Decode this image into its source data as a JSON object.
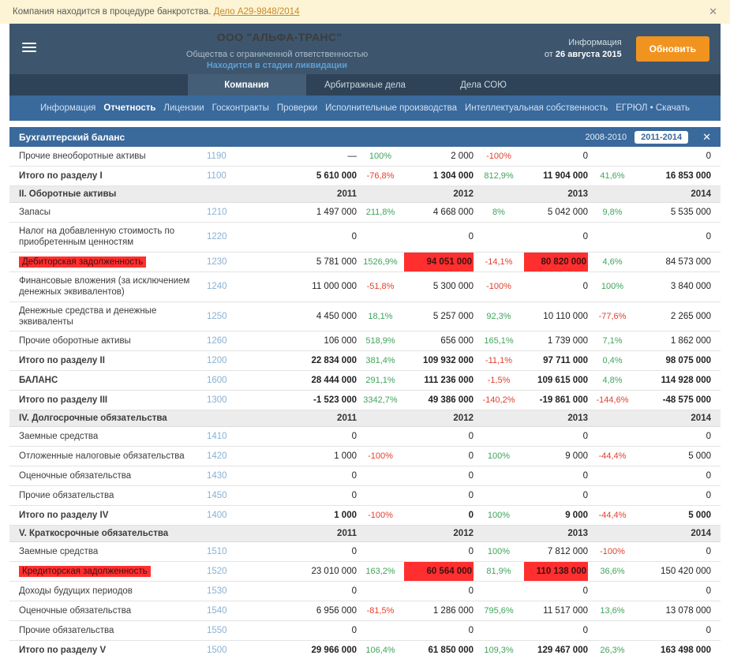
{
  "banner": {
    "text": "Компания находится в процедуре банкротства.",
    "link_label": "Дело А29-9848/2014",
    "close_icon": "✕"
  },
  "header": {
    "company_name": "ООО \"АЛЬФА-ТРАНС\"",
    "company_type": "Общества с ограниченной ответственностью",
    "status_link": "Находится в стадии ликвидации",
    "info_label": "Информация",
    "info_prefix": "от",
    "info_date": "26 августа 2015",
    "update_button": "Обновить"
  },
  "tabs": [
    {
      "label": "Компания",
      "active": true
    },
    {
      "label": "Арбитражные дела",
      "active": false
    },
    {
      "label": "Дела СОЮ",
      "active": false
    }
  ],
  "subnav": [
    {
      "label": "Информация",
      "active": false
    },
    {
      "label": "Отчетность",
      "active": true
    },
    {
      "label": "Лицензии",
      "active": false
    },
    {
      "label": "Госконтракты",
      "active": false
    },
    {
      "label": "Проверки",
      "active": false
    },
    {
      "label": "Исполнительные производства",
      "active": false
    },
    {
      "label": "Интеллектуальная собственность",
      "active": false
    },
    {
      "label": "ЕГРЮЛ • Скачать",
      "active": false
    }
  ],
  "balance": {
    "title": "Бухгалтерский баланс",
    "range_buttons": [
      {
        "label": "2008-2010",
        "active": false
      },
      {
        "label": "2011-2014",
        "active": true
      }
    ],
    "close_icon": "✕",
    "years": [
      "2011",
      "2012",
      "2013",
      "2014"
    ],
    "rows": [
      {
        "kind": "data",
        "name": "Прочие внеоборотные активы",
        "code": "1190",
        "cells": [
          "—",
          "100%",
          "2 000",
          "-100%",
          "0",
          "",
          "0"
        ]
      },
      {
        "kind": "total",
        "name": "Итого по разделу I",
        "code": "1100",
        "cells": [
          "5 610 000",
          "-76,8%",
          "1 304 000",
          "812,9%",
          "11 904 000",
          "41,6%",
          "16 853 000"
        ]
      },
      {
        "kind": "section",
        "name": "II. Оборотные активы"
      },
      {
        "kind": "data",
        "name": "Запасы",
        "code": "1210",
        "cells": [
          "1 497 000",
          "211,8%",
          "4 668 000",
          "8%",
          "5 042 000",
          "9,8%",
          "5 535 000"
        ]
      },
      {
        "kind": "data",
        "name": "Налог на добавленную стоимость по приобретенным ценностям",
        "code": "1220",
        "cells": [
          "0",
          "",
          "0",
          "",
          "0",
          "",
          "0"
        ]
      },
      {
        "kind": "data",
        "name": "Дебиторская задолженность",
        "code": "1230",
        "name_highlight": true,
        "cell_highlights": [
          2,
          4
        ],
        "cells": [
          "5 781 000",
          "1526,9%",
          "94 051 000",
          "-14,1%",
          "80 820 000",
          "4,6%",
          "84 573 000"
        ]
      },
      {
        "kind": "data",
        "name": "Финансовые вложения (за исключением денежных эквивалентов)",
        "code": "1240",
        "cells": [
          "11 000 000",
          "-51,8%",
          "5 300 000",
          "-100%",
          "0",
          "100%",
          "3 840 000"
        ]
      },
      {
        "kind": "data",
        "name": "Денежные средства и денежные эквиваленты",
        "code": "1250",
        "cells": [
          "4 450 000",
          "18,1%",
          "5 257 000",
          "92,3%",
          "10 110 000",
          "-77,6%",
          "2 265 000"
        ]
      },
      {
        "kind": "data",
        "name": "Прочие оборотные активы",
        "code": "1260",
        "cells": [
          "106 000",
          "518,9%",
          "656 000",
          "165,1%",
          "1 739 000",
          "7,1%",
          "1 862 000"
        ]
      },
      {
        "kind": "total",
        "name": "Итого по разделу II",
        "code": "1200",
        "cells": [
          "22 834 000",
          "381,4%",
          "109 932 000",
          "-11,1%",
          "97 711 000",
          "0,4%",
          "98 075 000"
        ]
      },
      {
        "kind": "total",
        "name": "БАЛАНС",
        "code": "1600",
        "cells": [
          "28 444 000",
          "291,1%",
          "111 236 000",
          "-1,5%",
          "109 615 000",
          "4,8%",
          "114 928 000"
        ]
      },
      {
        "kind": "total",
        "name": "Итого по разделу III",
        "code": "1300",
        "cells": [
          "-1 523 000",
          "3342,7%",
          "49 386 000",
          "-140,2%",
          "-19 861 000",
          "-144,6%",
          "-48 575 000"
        ]
      },
      {
        "kind": "section",
        "name": "IV. Долгосрочные обязательства"
      },
      {
        "kind": "data",
        "name": "Заемные средства",
        "code": "1410",
        "cells": [
          "0",
          "",
          "0",
          "",
          "0",
          "",
          "0"
        ]
      },
      {
        "kind": "data",
        "name": "Отложенные налоговые обязательства",
        "code": "1420",
        "cells": [
          "1 000",
          "-100%",
          "0",
          "100%",
          "9 000",
          "-44,4%",
          "5 000"
        ]
      },
      {
        "kind": "data",
        "name": "Оценочные обязательства",
        "code": "1430",
        "cells": [
          "0",
          "",
          "0",
          "",
          "0",
          "",
          "0"
        ]
      },
      {
        "kind": "data",
        "name": "Прочие обязательства",
        "code": "1450",
        "cells": [
          "0",
          "",
          "0",
          "",
          "0",
          "",
          "0"
        ]
      },
      {
        "kind": "total",
        "name": "Итого по разделу IV",
        "code": "1400",
        "cells": [
          "1 000",
          "-100%",
          "0",
          "100%",
          "9 000",
          "-44,4%",
          "5 000"
        ]
      },
      {
        "kind": "section",
        "name": "V. Краткосрочные обязательства"
      },
      {
        "kind": "data",
        "name": "Заемные средства",
        "code": "1510",
        "cells": [
          "0",
          "",
          "0",
          "100%",
          "7 812 000",
          "-100%",
          "0"
        ]
      },
      {
        "kind": "data",
        "name": "Кредиторская задолженность",
        "code": "1520",
        "name_highlight": true,
        "cell_highlights": [
          2,
          4
        ],
        "cells": [
          "23 010 000",
          "163,2%",
          "60 564 000",
          "81,9%",
          "110 138 000",
          "36,6%",
          "150 420 000"
        ]
      },
      {
        "kind": "data",
        "name": "Доходы будущих периодов",
        "code": "1530",
        "cells": [
          "0",
          "",
          "0",
          "",
          "0",
          "",
          "0"
        ]
      },
      {
        "kind": "data",
        "name": "Оценочные обязательства",
        "code": "1540",
        "cells": [
          "6 956 000",
          "-81,5%",
          "1 286 000",
          "795,6%",
          "11 517 000",
          "13,6%",
          "13 078 000"
        ]
      },
      {
        "kind": "data",
        "name": "Прочие обязательства",
        "code": "1550",
        "cells": [
          "0",
          "",
          "0",
          "",
          "0",
          "",
          "0"
        ]
      },
      {
        "kind": "total",
        "name": "Итого по разделу V",
        "code": "1500",
        "cells": [
          "29 966 000",
          "106,4%",
          "61 850 000",
          "109,3%",
          "129 467 000",
          "26,3%",
          "163 498 000"
        ]
      }
    ]
  },
  "colors": {
    "accent_orange": "#f0941f",
    "highlight_red": "#ff2f2f",
    "positive_green": "#3fa45b",
    "negative_red": "#e2402f",
    "header_blue": "#3d566e",
    "nav_blue": "#3a699c"
  }
}
